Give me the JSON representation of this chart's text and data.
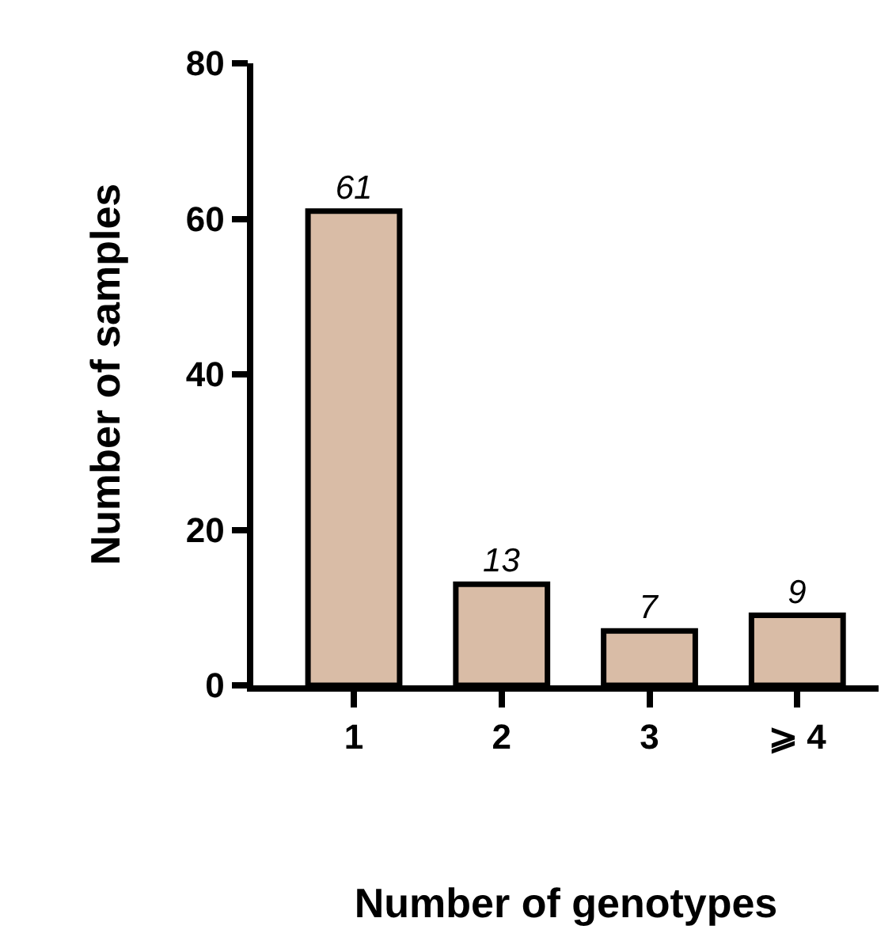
{
  "chart_data": {
    "type": "bar",
    "xlabel": "Number of genotypes",
    "ylabel": "Number of samples",
    "categories": [
      "1",
      "2",
      "3",
      "⩾ 4"
    ],
    "values": [
      61,
      13,
      7,
      9
    ],
    "color": "#d9bca6",
    "ylim": [
      0,
      80
    ],
    "yticks": [
      0,
      20,
      40,
      60,
      80
    ],
    "data_labels": true,
    "legend": false
  }
}
